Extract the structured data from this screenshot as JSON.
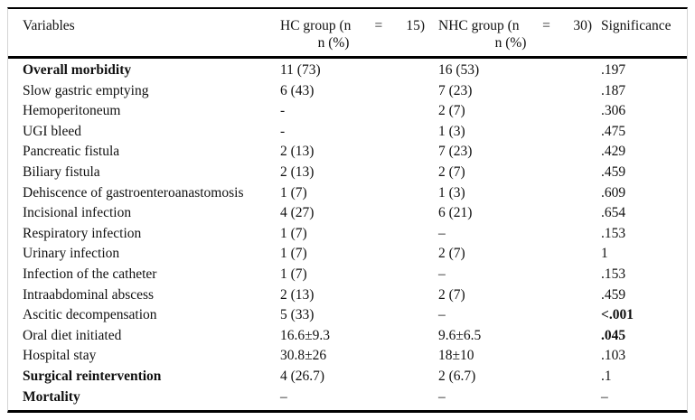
{
  "table": {
    "header": {
      "variables": "Variables",
      "hc_group": {
        "part1": "HC group (n",
        "eq": "=",
        "part2": "15)",
        "sub": "n (%)"
      },
      "nhc_group": {
        "part1": "NHC group (n",
        "eq": "=",
        "part2": "30)",
        "sub": "n (%)"
      },
      "significance": "Significance"
    },
    "rows": [
      {
        "variable": "Overall morbidity",
        "hc": "11 (73)",
        "nhc": "16 (53)",
        "sig": ".197",
        "bold_var": true,
        "bold_sig": false
      },
      {
        "variable": "Slow gastric emptying",
        "hc": "6 (43)",
        "nhc": "7 (23)",
        "sig": ".187",
        "bold_var": false,
        "bold_sig": false
      },
      {
        "variable": "Hemoperitoneum",
        "hc": "-",
        "nhc": "2 (7)",
        "sig": ".306",
        "bold_var": false,
        "bold_sig": false
      },
      {
        "variable": "UGI bleed",
        "hc": "-",
        "nhc": "1 (3)",
        "sig": ".475",
        "bold_var": false,
        "bold_sig": false
      },
      {
        "variable": "Pancreatic fistula",
        "hc": "2 (13)",
        "nhc": "7 (23)",
        "sig": ".429",
        "bold_var": false,
        "bold_sig": false
      },
      {
        "variable": "Biliary fistula",
        "hc": "2 (13)",
        "nhc": "2 (7)",
        "sig": ".459",
        "bold_var": false,
        "bold_sig": false
      },
      {
        "variable": "Dehiscence of gastroenteroanastomosis",
        "hc": "1 (7)",
        "nhc": "1 (3)",
        "sig": ".609",
        "bold_var": false,
        "bold_sig": false
      },
      {
        "variable": "Incisional infection",
        "hc": "4 (27)",
        "nhc": "6 (21)",
        "sig": ".654",
        "bold_var": false,
        "bold_sig": false
      },
      {
        "variable": "Respiratory infection",
        "hc": "1 (7)",
        "nhc": "–",
        "sig": ".153",
        "bold_var": false,
        "bold_sig": false
      },
      {
        "variable": "Urinary infection",
        "hc": "1 (7)",
        "nhc": "2 (7)",
        "sig": "1",
        "bold_var": false,
        "bold_sig": false
      },
      {
        "variable": "Infection of the catheter",
        "hc": "1 (7)",
        "nhc": "–",
        "sig": ".153",
        "bold_var": false,
        "bold_sig": false
      },
      {
        "variable": "Intraabdominal abscess",
        "hc": "2 (13)",
        "nhc": "2 (7)",
        "sig": ".459",
        "bold_var": false,
        "bold_sig": false
      },
      {
        "variable": "Ascitic decompensation",
        "hc": "5 (33)",
        "nhc": "–",
        "sig": "<.001",
        "bold_var": false,
        "bold_sig": true
      },
      {
        "variable": "Oral diet initiated",
        "hc": "16.6±9.3",
        "nhc": "9.6±6.5",
        "sig": ".045",
        "bold_var": false,
        "bold_sig": true
      },
      {
        "variable": "Hospital stay",
        "hc": "30.8±26",
        "nhc": "18±10",
        "sig": ".103",
        "bold_var": false,
        "bold_sig": false
      },
      {
        "variable": "Surgical reintervention",
        "hc": "4 (26.7)",
        "nhc": "2 (6.7)",
        "sig": ".1",
        "bold_var": true,
        "bold_sig": false
      },
      {
        "variable": "Mortality",
        "hc": "–",
        "nhc": "–",
        "sig": "–",
        "bold_var": true,
        "bold_sig": false
      }
    ]
  }
}
